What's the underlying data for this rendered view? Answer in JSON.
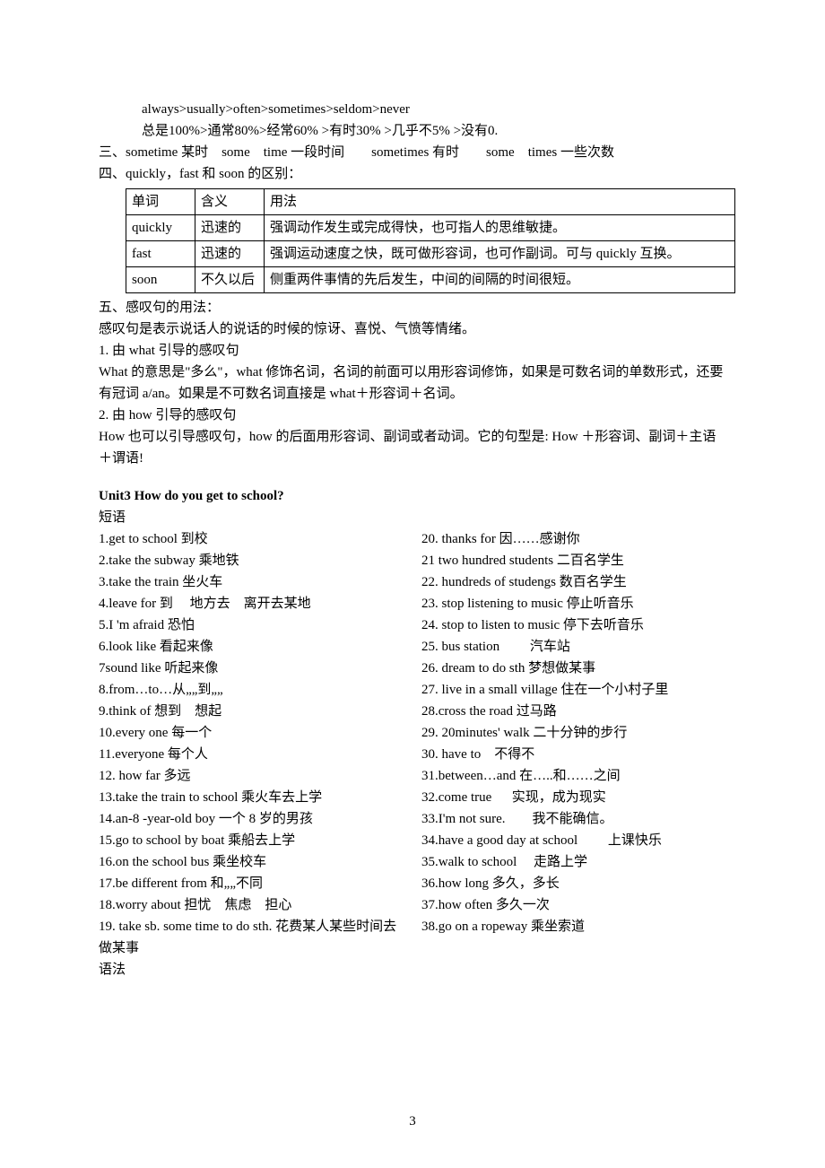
{
  "top": {
    "line1": "always>usually>often>sometimes>seldom>never",
    "line2": "总是100%>通常80%>经常60% >有时30% >几乎不5% >没有0."
  },
  "point3": "三、sometime 某时　some　time 一段时间　　sometimes 有时　　some　times 一些次数",
  "point4": "四、quickly，fast 和 soon 的区别：",
  "table": {
    "headers": [
      "单词",
      "含义",
      "用法"
    ],
    "rows": [
      [
        "quickly",
        "迅速的",
        "强调动作发生或完成得快，也可指人的思维敏捷。"
      ],
      [
        "fast",
        "迅速的",
        "强调运动速度之快，既可做形容词，也可作副词。可与 quickly 互换。"
      ],
      [
        "soon",
        "不久以后",
        "侧重两件事情的先后发生，中间的间隔的时间很短。"
      ]
    ]
  },
  "point5": {
    "title": "五、感叹句的用法：",
    "l1": "感叹句是表示说话人的说话的时候的惊讶、喜悦、气愤等情绪。",
    "l2": "1. 由 what 引导的感叹句",
    "l3": "What 的意思是\"多么\"，what 修饰名词，名词的前面可以用形容词修饰，如果是可数名词的单数形式，还要有冠词 a/an。如果是不可数名词直接是 what＋形容词＋名词。",
    "l4": "2. 由 how 引导的感叹句",
    "l5": "How 也可以引导感叹句，how 的后面用形容词、副词或者动词。它的句型是: How ＋形容词、副词＋主语＋谓语!"
  },
  "unit3": {
    "title": "Unit3 How do you get to school?",
    "sub1": "短语",
    "left": [
      "1.get to school 到校",
      "2.take the subway 乘地铁",
      "3.take the train 坐火车",
      "4.leave for 到　 地方去　离开去某地",
      "5.I 'm afraid 恐怕",
      "6.look like 看起来像",
      "7sound like 听起来像",
      "8.from…to…从„„到„„",
      "9.think of 想到　想起",
      "10.every one 每一个",
      "11.everyone 每个人",
      "12. how far 多远",
      "13.take the train to school 乘火车去上学",
      "14.an-8 -year-old boy 一个 8 岁的男孩",
      "15.go to school by boat 乘船去上学",
      "16.on the school bus 乘坐校车",
      "17.be different from 和„„不同",
      "18.worry about 担忧　焦虑　担心",
      "19. take sb. some time to do sth. 花费某人某些时间去做某事"
    ],
    "right": [
      "20. thanks for 因……感谢你",
      "21 two hundred students 二百名学生",
      "22. hundreds of studengs 数百名学生",
      "23. stop listening to music 停止听音乐",
      "24. stop to listen to music 停下去听音乐",
      "25. bus station 　　汽车站",
      "26. dream to do sth 梦想做某事",
      "27. live in a small village 住在一个小村子里",
      "28.cross the road 过马路",
      "29. 20minutes' walk 二十分钟的步行",
      "30. have to　不得不",
      "31.between…and 在…..和……之间",
      "32.come true 　 实现，成为现实",
      "33.I'm not sure.　　我不能确信。",
      "34.have a good day at school 　　上课快乐",
      "35.walk to school 　走路上学",
      "36.how long 多久，多长",
      "37.how often 多久一次",
      "38.go on a ropeway 乘坐索道"
    ],
    "sub2": "语法"
  },
  "pagenum": "3"
}
